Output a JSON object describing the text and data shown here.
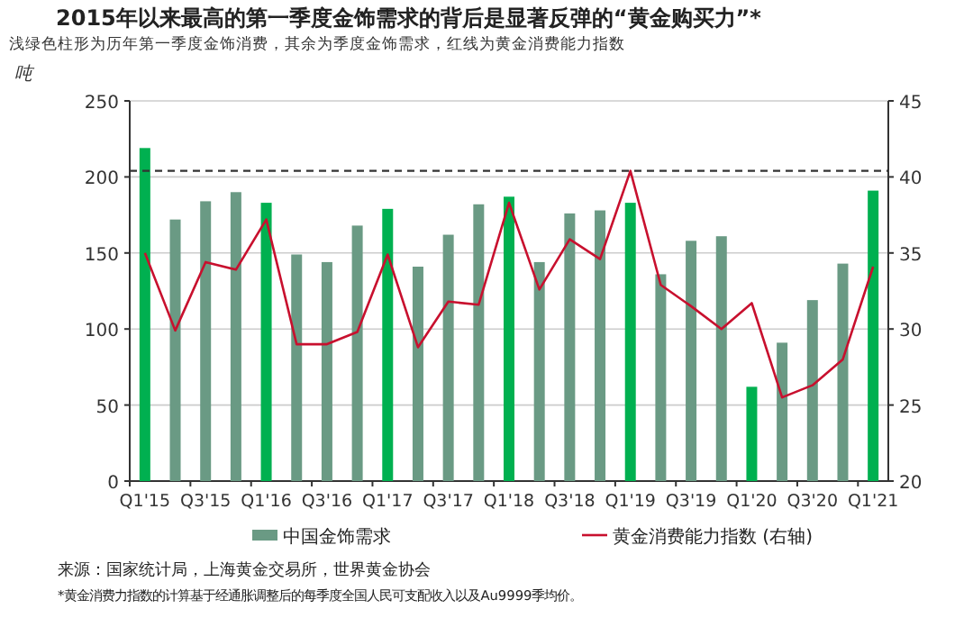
{
  "chart_data": {
    "type": "bar",
    "title": "2015年以来最高的第一季度金饰需求的背后是显著反弹的“黄金购买力”*",
    "subtitle": "浅绿色柱形为历年第一季度金饰消费，其余为季度金饰需求，红线为黄金消费能力指数",
    "ylabel": "吨",
    "categories": [
      "Q1'15",
      null,
      "Q3'15",
      null,
      "Q1'16",
      null,
      "Q3'16",
      null,
      "Q1'17",
      null,
      "Q3'17",
      null,
      "Q1'18",
      null,
      "Q3'18",
      null,
      "Q1'19",
      null,
      "Q3'19",
      null,
      "Q1'20",
      null,
      "Q3'20",
      null,
      "Q1'21"
    ],
    "series": [
      {
        "name": "中国金饰需求",
        "color": "#6a9a84",
        "colors": [
          "#00b050",
          "#6a9a84",
          "#6a9a84",
          "#6a9a84",
          "#00b050",
          "#6a9a84",
          "#6a9a84",
          "#6a9a84",
          "#00b050",
          "#6a9a84",
          "#6a9a84",
          "#6a9a84",
          "#00b050",
          "#6a9a84",
          "#6a9a84",
          "#6a9a84",
          "#00b050",
          "#6a9a84",
          "#6a9a84",
          "#6a9a84",
          "#00b050",
          "#6a9a84",
          "#6a9a84",
          "#6a9a84",
          "#00b050"
        ],
        "values": [
          219,
          172,
          184,
          190,
          183,
          149,
          144,
          168,
          179,
          141,
          162,
          182,
          187,
          144,
          176,
          178,
          183,
          136,
          158,
          161,
          62,
          91,
          119,
          143,
          191
        ]
      },
      {
        "type": "line",
        "axis": "y2",
        "name": "黄金消费能力指数 (右轴)",
        "color": "#c8102e",
        "values": [
          35.0,
          29.9,
          34.4,
          33.9,
          37.2,
          29.0,
          29.0,
          29.8,
          34.9,
          28.8,
          31.8,
          31.6,
          38.3,
          32.6,
          35.9,
          34.6,
          40.4,
          32.9,
          31.5,
          30.0,
          31.7,
          25.5,
          26.3,
          28.0,
          34.1
        ]
      }
    ],
    "ylim": [
      0,
      250
    ],
    "yticks": [
      0,
      50,
      100,
      150,
      200,
      250
    ],
    "y2lim": [
      20,
      45
    ],
    "y2ticks": [
      20,
      25,
      30,
      35,
      40,
      45
    ],
    "ref_lines": [
      {
        "axis": "y2",
        "value": 40.4,
        "color": "#333333",
        "line_style": "dashed"
      }
    ],
    "grid": "y",
    "legend": "bottom",
    "annotations": [
      "来源：国家统计局，上海黄金交易所，世界黄金协会",
      "*黄金消费力指数的计算基于经通胀调整后的每季度全国人民可支配收入以及Au9999季均价。"
    ]
  }
}
